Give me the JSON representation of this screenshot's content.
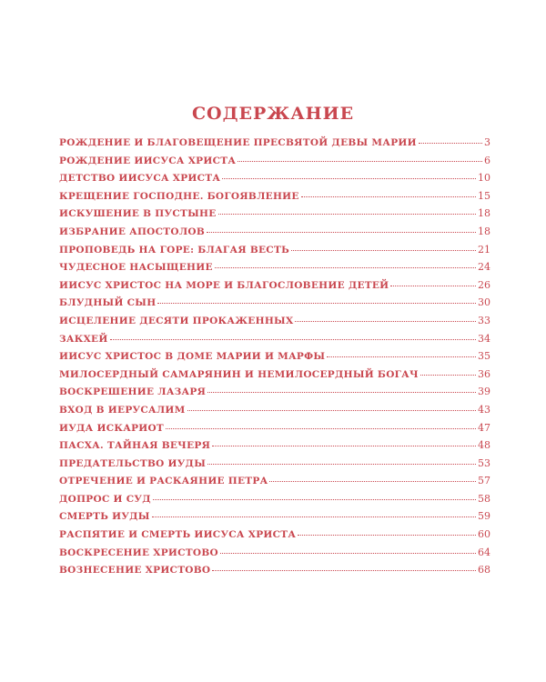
{
  "title": "СОДЕРЖАНИЕ",
  "accent_color": "#c9474f",
  "entries": [
    {
      "label": "РОЖДЕНИЕ И БЛАГОВЕЩЕНИЕ ПРЕСВЯТОЙ ДЕВЫ МАРИИ",
      "page": "3"
    },
    {
      "label": "РОЖДЕНИЕ ИИСУСА ХРИСТА",
      "page": "6"
    },
    {
      "label": "ДЕТСТВО ИИСУСА ХРИСТА",
      "page": "10"
    },
    {
      "label": "КРЕЩЕНИЕ ГОСПОДНЕ. БОГОЯВЛЕНИЕ",
      "page": "15"
    },
    {
      "label": "ИСКУШЕНИЕ В ПУСТЫНЕ",
      "page": "18"
    },
    {
      "label": "ИЗБРАНИЕ АПОСТОЛОВ",
      "page": "18"
    },
    {
      "label": "ПРОПОВЕДЬ НА ГОРЕ: БЛАГАЯ ВЕСТЬ",
      "page": "21"
    },
    {
      "label": "ЧУДЕСНОЕ НАСЫЩЕНИЕ",
      "page": "24"
    },
    {
      "label": "ИИСУС ХРИСТОС НА МОРЕ И БЛАГОСЛОВЕНИЕ ДЕТЕЙ",
      "page": "26"
    },
    {
      "label": "БЛУДНЫЙ СЫН",
      "page": "30"
    },
    {
      "label": "ИСЦЕЛЕНИЕ ДЕСЯТИ ПРОКАЖЕННЫХ",
      "page": "33"
    },
    {
      "label": "ЗАКХЕЙ",
      "page": "34"
    },
    {
      "label": "ИИСУС ХРИСТОС В ДОМЕ МАРИИ И МАРФЫ",
      "page": "35"
    },
    {
      "label": "МИЛОСЕРДНЫЙ САМАРЯНИН И НЕМИЛОСЕРДНЫЙ БОГАЧ",
      "page": "36"
    },
    {
      "label": "ВОСКРЕШЕНИЕ ЛАЗАРЯ",
      "page": "39"
    },
    {
      "label": "ВХОД В ИЕРУСАЛИМ",
      "page": "43"
    },
    {
      "label": "ИУДА ИСКАРИОТ",
      "page": "47"
    },
    {
      "label": "ПАСХА. ТАЙНАЯ ВЕЧЕРЯ",
      "page": "48"
    },
    {
      "label": "ПРЕДАТЕЛЬСТВО ИУДЫ",
      "page": "53"
    },
    {
      "label": "ОТРЕЧЕНИЕ И РАСКАЯНИЕ ПЕТРА",
      "page": "57"
    },
    {
      "label": "ДОПРОС И СУД",
      "page": "58"
    },
    {
      "label": "СМЕРТЬ ИУДЫ",
      "page": "59"
    },
    {
      "label": "РАСПЯТИЕ И СМЕРТЬ ИИСУСА ХРИСТА",
      "page": "60"
    },
    {
      "label": "ВОСКРЕСЕНИЕ ХРИСТОВО",
      "page": "64"
    },
    {
      "label": "ВОЗНЕСЕНИЕ ХРИСТОВО",
      "page": "68"
    }
  ]
}
